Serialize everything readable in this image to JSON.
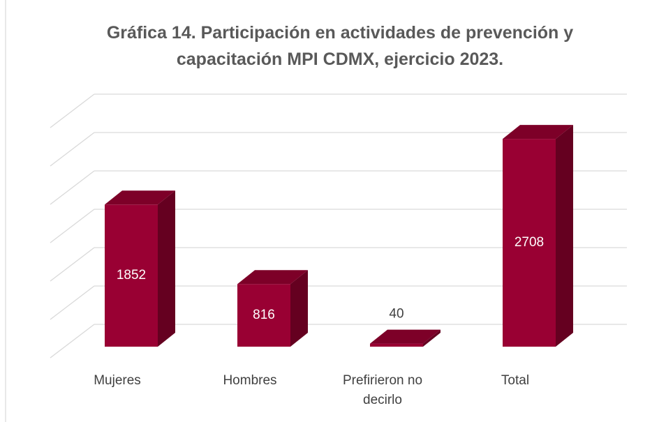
{
  "chart_data": {
    "type": "bar3d",
    "title": "Gráfica 14. Participación en actividades de prevención y capacitación MPI CDMX, ejercicio 2023.",
    "categories": [
      "Mujeres",
      "Hombres",
      "Prefirieron no decirlo",
      "Total"
    ],
    "values": [
      1852,
      816,
      40,
      2708
    ],
    "color": "#990033",
    "ylim": [
      0,
      3000
    ],
    "yticks": [
      0,
      500,
      1000,
      1500,
      2000,
      2500,
      3000
    ],
    "grid": true
  }
}
